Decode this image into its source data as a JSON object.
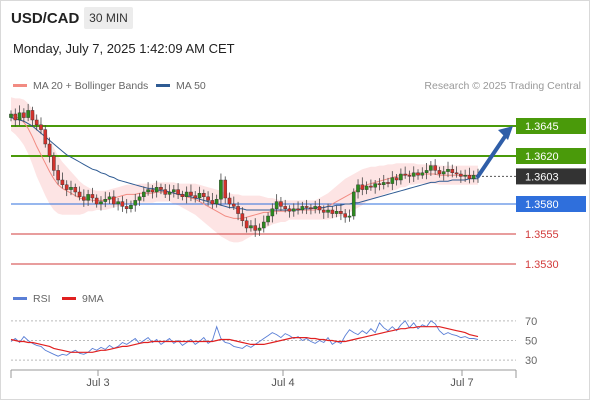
{
  "header": {
    "symbol": "USD/CAD",
    "timeframe": "30 MIN"
  },
  "datetime": "Monday, July 7, 2025 1:42:09 AM CET",
  "legend": {
    "items": [
      {
        "label": "MA 20 + Bollinger Bands",
        "color": "#f28b82"
      },
      {
        "label": "MA 50",
        "color": "#2f5b93"
      }
    ],
    "credit": "Research © 2025 Trading Central"
  },
  "rsi_legend": {
    "items": [
      {
        "label": "RSI",
        "color": "#5a7fd6"
      },
      {
        "label": "9MA",
        "color": "#e02020"
      }
    ]
  },
  "colors": {
    "resistance": "#4a9a0a",
    "pivot": "#2f6fdc",
    "support": "#d13b3b",
    "price_tag": "#333333",
    "arrow": "#2f5ea8",
    "candle_up": "#2c8a1e",
    "candle_down": "#d3322c",
    "band_fill": "#fde1e1"
  },
  "chart_data": [
    {
      "type": "candlestick",
      "title": "USD/CAD 30 MIN",
      "x_ticks": [
        "Jul 3",
        "Jul 4",
        "Jul 7"
      ],
      "ylim": [
        1.3515,
        1.367
      ],
      "current_price": 1.3603,
      "levels": [
        {
          "label": "1.3645",
          "value": 1.3645,
          "kind": "resistance"
        },
        {
          "label": "1.3620",
          "value": 1.362,
          "kind": "resistance"
        },
        {
          "label": "1.3603",
          "value": 1.3603,
          "kind": "last"
        },
        {
          "label": "1.3580",
          "value": 1.358,
          "kind": "pivot"
        },
        {
          "label": "1.3555",
          "value": 1.3555,
          "kind": "support"
        },
        {
          "label": "1.3530",
          "value": 1.353,
          "kind": "support"
        }
      ],
      "close": [
        1.3655,
        1.365,
        1.3656,
        1.3652,
        1.3658,
        1.365,
        1.3646,
        1.3642,
        1.363,
        1.362,
        1.3608,
        1.36,
        1.3596,
        1.3592,
        1.3594,
        1.359,
        1.3586,
        1.3583,
        1.3588,
        1.3585,
        1.358,
        1.3582,
        1.3584,
        1.3586,
        1.358,
        1.3582,
        1.3578,
        1.3576,
        1.3579,
        1.3583,
        1.3586,
        1.359,
        1.3592,
        1.359,
        1.3594,
        1.3592,
        1.3588,
        1.359,
        1.3592,
        1.3588,
        1.3586,
        1.359,
        1.3587,
        1.3585,
        1.3589,
        1.3586,
        1.3583,
        1.358,
        1.3584,
        1.36,
        1.3585,
        1.358,
        1.3578,
        1.3572,
        1.3566,
        1.356,
        1.3562,
        1.3558,
        1.356,
        1.3565,
        1.357,
        1.3576,
        1.3582,
        1.3578,
        1.3576,
        1.3574,
        1.3576,
        1.3575,
        1.3578,
        1.3577,
        1.3576,
        1.3578,
        1.3575,
        1.3573,
        1.3575,
        1.3572,
        1.3574,
        1.3572,
        1.3569,
        1.357,
        1.359,
        1.3596,
        1.3592,
        1.3595,
        1.3594,
        1.3597,
        1.3596,
        1.3598,
        1.3597,
        1.3602,
        1.36,
        1.3605,
        1.3604,
        1.3603,
        1.3606,
        1.3604,
        1.3606,
        1.3608,
        1.3612,
        1.3608,
        1.3605,
        1.3607,
        1.3609,
        1.3606,
        1.3605,
        1.3603,
        1.3604,
        1.3601,
        1.3604,
        1.3603
      ],
      "ma20": [
        1.3655,
        1.3653,
        1.3651,
        1.3648,
        1.3643,
        1.3636,
        1.3628,
        1.3621,
        1.3614,
        1.3607,
        1.3601,
        1.3596,
        1.3593,
        1.3591,
        1.3589,
        1.3587,
        1.3585,
        1.3584,
        1.3584,
        1.3583,
        1.3583,
        1.3583,
        1.3583,
        1.3584,
        1.3585,
        1.3586,
        1.3587,
        1.3588,
        1.3588,
        1.3588,
        1.3589,
        1.3589,
        1.3589,
        1.3589,
        1.359,
        1.359,
        1.359,
        1.359,
        1.3589,
        1.3588,
        1.3587,
        1.3586,
        1.3585,
        1.3584,
        1.3582,
        1.358,
        1.3578,
        1.3576,
        1.3574,
        1.3572,
        1.357,
        1.3569,
        1.3568,
        1.3568,
        1.3568,
        1.3569,
        1.357,
        1.3571,
        1.3572,
        1.3573,
        1.3573,
        1.3574,
        1.3574,
        1.3574,
        1.3574,
        1.3575,
        1.3575,
        1.3575,
        1.3575,
        1.3575,
        1.3575,
        1.3575,
        1.3576,
        1.3577,
        1.3578,
        1.358,
        1.3582,
        1.3584,
        1.3586,
        1.3588,
        1.359,
        1.3592,
        1.3594,
        1.3596,
        1.3597,
        1.3598,
        1.3599,
        1.36,
        1.3601,
        1.3602,
        1.3603,
        1.3604,
        1.3604,
        1.3605,
        1.3605,
        1.3605,
        1.3605,
        1.3605,
        1.3605,
        1.3605,
        1.3604,
        1.3604,
        1.3604,
        1.3604,
        1.3604,
        1.3604,
        1.3604,
        1.3604,
        1.3604,
        1.3604
      ],
      "ma50": [
        1.3652,
        1.3651,
        1.365,
        1.3649,
        1.3647,
        1.3645,
        1.3642,
        1.3639,
        1.3636,
        1.3633,
        1.363,
        1.3627,
        1.3624,
        1.3621,
        1.3619,
        1.3617,
        1.3615,
        1.3613,
        1.3611,
        1.3609,
        1.3608,
        1.3606,
        1.3605,
        1.3603,
        1.3602,
        1.36,
        1.3599,
        1.3598,
        1.3597,
        1.3596,
        1.3595,
        1.3594,
        1.3593,
        1.3593,
        1.3592,
        1.3591,
        1.3591,
        1.359,
        1.3589,
        1.3588,
        1.3588,
        1.3587,
        1.3586,
        1.3585,
        1.3584,
        1.3583,
        1.3582,
        1.3581,
        1.358,
        1.3579,
        1.3578,
        1.3577,
        1.3577,
        1.3576,
        1.3576,
        1.3575,
        1.3575,
        1.3575,
        1.3575,
        1.3575,
        1.3575,
        1.3575,
        1.3575,
        1.3575,
        1.3575,
        1.3575,
        1.3575,
        1.3575,
        1.3576,
        1.3576,
        1.3576,
        1.3577,
        1.3577,
        1.3577,
        1.3578,
        1.3578,
        1.3579,
        1.3579,
        1.358,
        1.358,
        1.3581,
        1.3581,
        1.3582,
        1.3583,
        1.3584,
        1.3585,
        1.3586,
        1.3587,
        1.3588,
        1.3589,
        1.359,
        1.3591,
        1.3592,
        1.3593,
        1.3594,
        1.3595,
        1.3596,
        1.3597,
        1.3598,
        1.3598,
        1.3599,
        1.3599,
        1.3599,
        1.36,
        1.36,
        1.36,
        1.36,
        1.3601,
        1.3601,
        1.3601
      ],
      "bb_width": [
        0.0014,
        0.0015,
        0.0017,
        0.0019,
        0.0021,
        0.0023,
        0.0025,
        0.0026,
        0.0027,
        0.0027,
        0.0026,
        0.0024,
        0.0022,
        0.002,
        0.0018,
        0.0016,
        0.0014,
        0.0012,
        0.001,
        0.0009,
        0.0008,
        0.0008,
        0.0008,
        0.0008,
        0.0008,
        0.0008,
        0.0008,
        0.0008,
        0.0008,
        0.0008,
        0.0008,
        0.0008,
        0.0008,
        0.0008,
        0.0008,
        0.0008,
        0.0008,
        0.0008,
        0.0009,
        0.0009,
        0.001,
        0.0011,
        0.0012,
        0.0013,
        0.0014,
        0.0015,
        0.0016,
        0.0017,
        0.0018,
        0.0019,
        0.0019,
        0.002,
        0.002,
        0.002,
        0.0019,
        0.0018,
        0.0017,
        0.0016,
        0.0015,
        0.0013,
        0.0012,
        0.0011,
        0.001,
        0.0009,
        0.0009,
        0.0008,
        0.0008,
        0.0008,
        0.0008,
        0.0008,
        0.0008,
        0.0008,
        0.0009,
        0.001,
        0.0011,
        0.0012,
        0.0013,
        0.0014,
        0.0015,
        0.0015,
        0.0015,
        0.0015,
        0.0015,
        0.0014,
        0.0014,
        0.0013,
        0.0013,
        0.0012,
        0.0012,
        0.0011,
        0.0011,
        0.001,
        0.001,
        0.0009,
        0.0009,
        0.0008,
        0.0008,
        0.0008,
        0.0008,
        0.0008,
        0.0008,
        0.0008,
        0.0008,
        0.0008,
        0.0008,
        0.0008,
        0.0008,
        0.0008,
        0.0008,
        0.0008
      ],
      "forecast_arrow": {
        "from": 1.3603,
        "to": 1.3645
      }
    },
    {
      "type": "line",
      "title": "RSI",
      "ylim": [
        20,
        80
      ],
      "y_ticks": [
        70,
        50,
        30
      ],
      "series": [
        {
          "name": "RSI",
          "values": [
            49,
            52,
            48,
            54,
            50,
            47,
            45,
            44,
            40,
            38,
            36,
            34,
            36,
            35,
            38,
            40,
            37,
            36,
            38,
            42,
            40,
            43,
            41,
            45,
            42,
            44,
            48,
            46,
            49,
            52,
            47,
            50,
            53,
            48,
            51,
            46,
            49,
            52,
            47,
            50,
            45,
            48,
            51,
            46,
            49,
            53,
            47,
            50,
            64,
            52,
            48,
            47,
            44,
            43,
            42,
            45,
            43,
            46,
            49,
            52,
            55,
            58,
            56,
            53,
            57,
            55,
            52,
            54,
            50,
            52,
            49,
            47,
            50,
            48,
            53,
            46,
            49,
            47,
            55,
            61,
            58,
            56,
            60,
            57,
            62,
            58,
            68,
            63,
            60,
            64,
            60,
            66,
            70,
            63,
            68,
            62,
            66,
            64,
            70,
            67,
            60,
            56,
            58,
            56,
            55,
            53,
            54,
            52,
            52,
            51
          ]
        },
        {
          "name": "9MA",
          "values": [
            51,
            50,
            49,
            49,
            48,
            48,
            47,
            46,
            45,
            44,
            42,
            41,
            40,
            39,
            38,
            38,
            38,
            38,
            38,
            38,
            39,
            40,
            40,
            41,
            42,
            43,
            44,
            44,
            45,
            46,
            47,
            48,
            48,
            49,
            49,
            49,
            49,
            49,
            49,
            49,
            49,
            49,
            49,
            49,
            49,
            49,
            49,
            49,
            50,
            51,
            51,
            51,
            50,
            49,
            48,
            47,
            46,
            46,
            46,
            46,
            47,
            48,
            49,
            50,
            51,
            52,
            53,
            53,
            53,
            53,
            52,
            52,
            51,
            51,
            50,
            50,
            49,
            49,
            49,
            50,
            51,
            52,
            53,
            54,
            55,
            56,
            57,
            58,
            59,
            60,
            61,
            62,
            62,
            63,
            63,
            64,
            64,
            64,
            64,
            64,
            64,
            63,
            62,
            61,
            60,
            59,
            58,
            56,
            55,
            54
          ]
        }
      ]
    }
  ]
}
